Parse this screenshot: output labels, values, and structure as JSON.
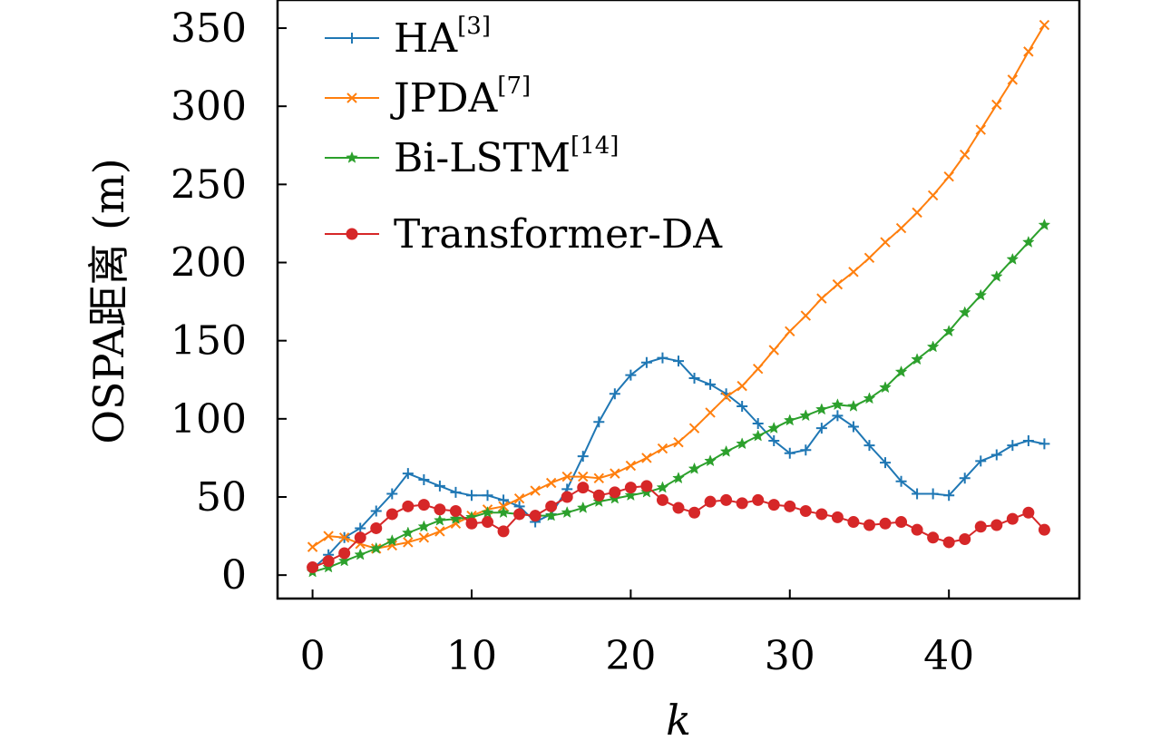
{
  "chart_data": {
    "type": "line",
    "xlabel": "k",
    "ylabel": "OSPA距离 (m)",
    "xlim": [
      -2.2,
      48.2
    ],
    "ylim": [
      -15,
      368
    ],
    "xticks": [
      0,
      10,
      20,
      30,
      40
    ],
    "yticks": [
      0,
      50,
      100,
      150,
      200,
      250,
      300,
      350
    ],
    "grid": false,
    "legend_position": "top-left",
    "x": [
      0,
      1,
      2,
      3,
      4,
      5,
      6,
      7,
      8,
      9,
      10,
      11,
      12,
      13,
      14,
      15,
      16,
      17,
      18,
      19,
      20,
      21,
      22,
      23,
      24,
      25,
      26,
      27,
      28,
      29,
      30,
      31,
      32,
      33,
      34,
      35,
      36,
      37,
      38,
      39,
      40,
      41,
      42,
      43,
      44,
      45,
      46
    ],
    "series": [
      {
        "name": "HA",
        "ref": "[3]",
        "color": "#1f77b4",
        "marker": "plus",
        "values": [
          4,
          13,
          24,
          30,
          41,
          52,
          65,
          61,
          57,
          53,
          51,
          51,
          48,
          44,
          34,
          39,
          55,
          76,
          98,
          116,
          128,
          136,
          139,
          137,
          126,
          122,
          116,
          108,
          97,
          86,
          78,
          80,
          94,
          102,
          95,
          83,
          72,
          60,
          52,
          52,
          51,
          62,
          73,
          77,
          83,
          86,
          84
        ]
      },
      {
        "name": "JPDA",
        "ref": "[7]",
        "color": "#ff7f0e",
        "marker": "x",
        "values": [
          18,
          25,
          24,
          20,
          17,
          19,
          21,
          24,
          28,
          33,
          38,
          42,
          44,
          49,
          54,
          59,
          63,
          63,
          62,
          65,
          70,
          75,
          81,
          85,
          94,
          104,
          114,
          121,
          132,
          144,
          156,
          166,
          177,
          186,
          194,
          203,
          213,
          222,
          232,
          243,
          255,
          269,
          285,
          301,
          317,
          335,
          352
        ]
      },
      {
        "name": "Bi-LSTM",
        "ref": "[14]",
        "color": "#2ca02c",
        "marker": "star",
        "values": [
          2,
          5,
          9,
          13,
          17,
          22,
          27,
          31,
          35,
          36,
          37,
          40,
          40,
          39,
          38,
          38,
          40,
          43,
          47,
          49,
          51,
          53,
          56,
          62,
          68,
          73,
          79,
          84,
          89,
          94,
          99,
          102,
          106,
          109,
          108,
          113,
          120,
          130,
          138,
          146,
          156,
          168,
          179,
          191,
          202,
          213,
          224
        ]
      },
      {
        "name": "Transformer-DA",
        "ref": "",
        "color": "#d62728",
        "marker": "circle",
        "values": [
          5,
          9,
          14,
          24,
          30,
          39,
          44,
          45,
          42,
          41,
          33,
          34,
          28,
          39,
          38,
          44,
          50,
          56,
          51,
          53,
          56,
          57,
          48,
          43,
          40,
          47,
          48,
          46,
          48,
          45,
          44,
          41,
          39,
          37,
          34,
          32,
          33,
          34,
          29,
          24,
          21,
          23,
          31,
          32,
          36,
          40,
          29
        ]
      }
    ]
  }
}
